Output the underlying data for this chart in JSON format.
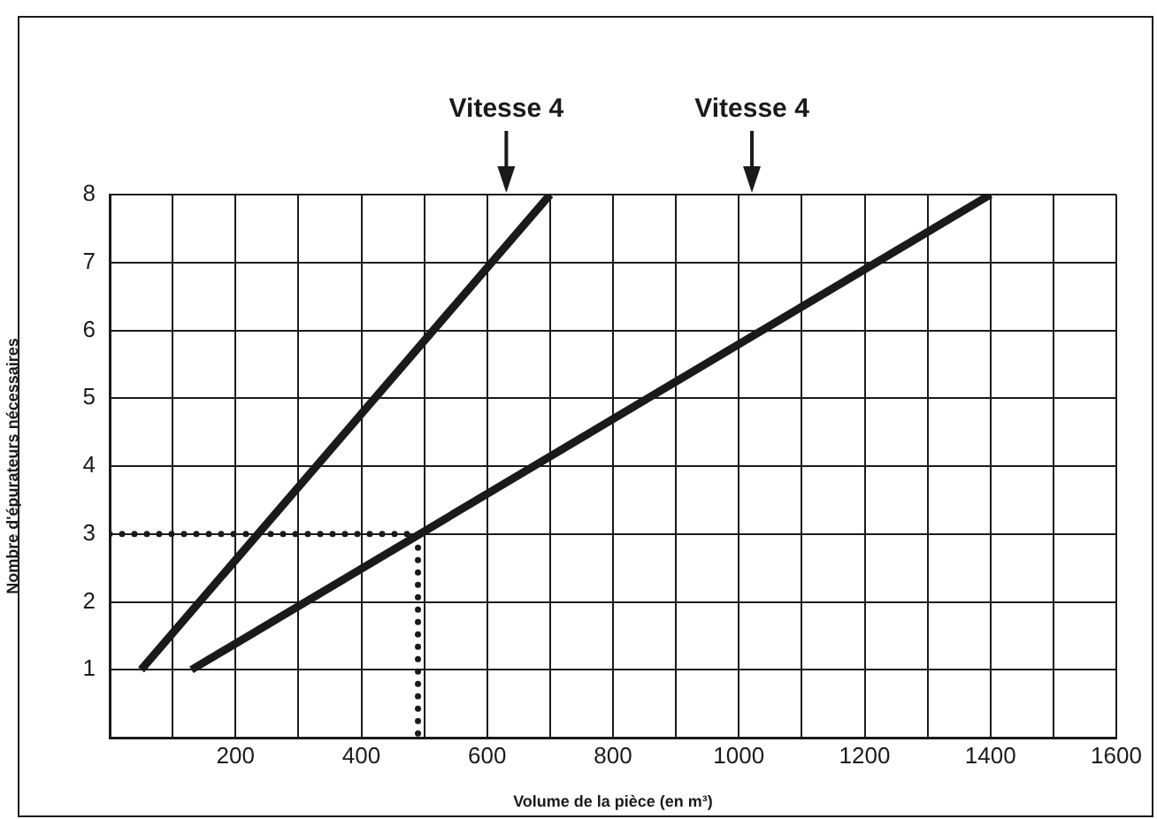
{
  "chart_data": {
    "type": "line",
    "xlabel": "Volume de la pièce (en m³)",
    "ylabel": "Nombre d'épurateurs nécessaires",
    "series": [
      {
        "color": "#1a1a1a",
        "x": [
          50,
          700
        ],
        "values": [
          1,
          8
        ]
      },
      {
        "color": "#1a1a1a",
        "x": [
          130,
          1400
        ],
        "values": [
          1,
          8
        ]
      },
      {
        "color": "#1a1a1a",
        "x": [
          0,
          490,
          490
        ],
        "values": [
          3,
          3,
          0
        ],
        "line_style": "dotted"
      }
    ],
    "annotations": [
      "Vitesse 4",
      "Vitesse 4"
    ],
    "xlim": [
      0,
      1600
    ],
    "ylim": [
      0,
      8
    ],
    "xticks": [
      {
        "value": 0,
        "label": null
      },
      {
        "value": 100,
        "label": null
      },
      200,
      {
        "value": 300,
        "label": null
      },
      400,
      {
        "value": 500,
        "label": null
      },
      600,
      {
        "value": 700,
        "label": null
      },
      800,
      {
        "value": 900,
        "label": null
      },
      1000,
      {
        "value": 1100,
        "label": null
      },
      1200,
      {
        "value": 1300,
        "label": null
      },
      1400,
      {
        "value": 1500,
        "label": null
      },
      1600
    ],
    "yticks": [
      1,
      2,
      3,
      4,
      5,
      6,
      7,
      8
    ],
    "grid": true,
    "legend": false,
    "marker": "none",
    "line_style": "solid"
  }
}
